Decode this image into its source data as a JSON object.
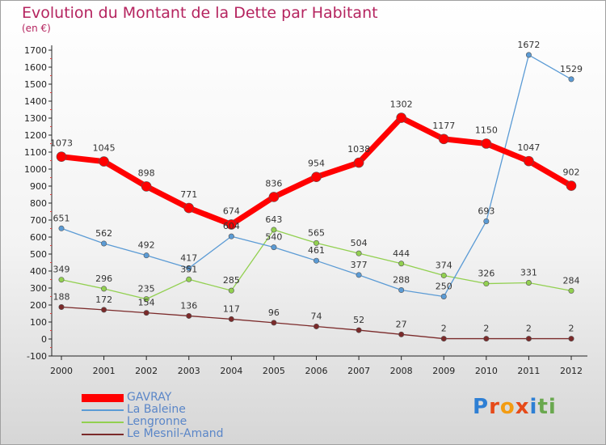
{
  "title": "Evolution du Montant de la Dette par Habitant",
  "subtitle": "(en €)",
  "logo": {
    "text": "Proxiti",
    "colors": [
      "#2e7fd4",
      "#e64a19",
      "#f39c12",
      "#e64a19",
      "#2e7fd4",
      "#6aa84f",
      "#6aa84f"
    ]
  },
  "chart_data": {
    "type": "line",
    "title": "Evolution du Montant de la Dette par Habitant",
    "subtitle": "(en €)",
    "x": [
      "2000",
      "2001",
      "2002",
      "2003",
      "2004",
      "2005",
      "2006",
      "2007",
      "2008",
      "2009",
      "2010",
      "2011",
      "2012"
    ],
    "ylim": [
      -100,
      1700
    ],
    "yticks": [
      -100,
      0,
      100,
      200,
      300,
      400,
      500,
      600,
      700,
      800,
      900,
      1000,
      1100,
      1200,
      1300,
      1400,
      1500,
      1600,
      1700
    ],
    "grid": false,
    "legend_position": "bottom-left",
    "series": [
      {
        "name": "GAVRAY",
        "color": "#ff0000",
        "values": [
          1073,
          1045,
          898,
          771,
          674,
          836,
          954,
          1038,
          1302,
          1177,
          1150,
          1047,
          902
        ]
      },
      {
        "name": "La Baleine",
        "color": "#5b9bd5",
        "values": [
          651,
          562,
          492,
          417,
          604,
          540,
          461,
          377,
          288,
          250,
          693,
          1672,
          1529
        ]
      },
      {
        "name": "Lengronne",
        "color": "#92d050",
        "values": [
          349,
          296,
          235,
          351,
          285,
          643,
          565,
          504,
          444,
          374,
          326,
          331,
          284
        ]
      },
      {
        "name": "Le Mesnil-Amand",
        "color": "#7b2a2a",
        "values": [
          188,
          172,
          154,
          136,
          117,
          96,
          74,
          52,
          27,
          2,
          2,
          2,
          2
        ]
      }
    ]
  }
}
